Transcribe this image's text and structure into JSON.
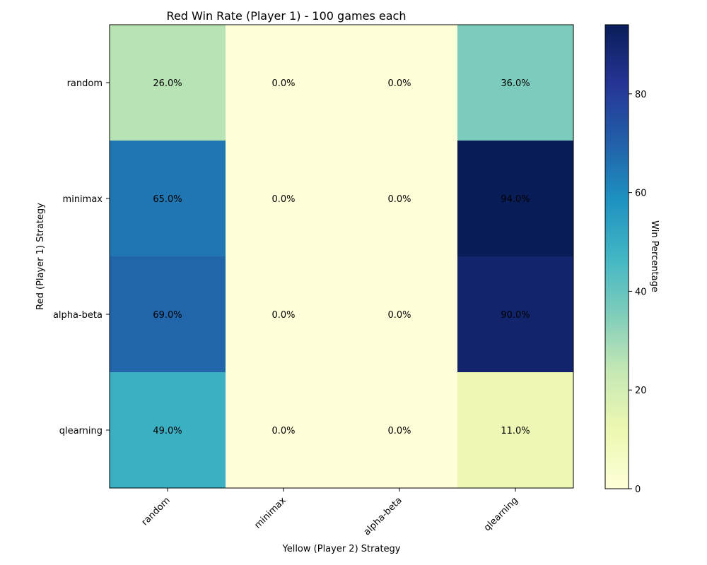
{
  "chart_data": {
    "type": "heatmap",
    "title": "Red Win Rate (Player 1) - 100 games each",
    "xlabel": "Yellow (Player 2) Strategy",
    "ylabel": "Red (Player 1) Strategy",
    "x_categories": [
      "random",
      "minimax",
      "alpha-beta",
      "qlearning"
    ],
    "y_categories": [
      "random",
      "minimax",
      "alpha-beta",
      "qlearning"
    ],
    "values": [
      [
        26.0,
        0.0,
        0.0,
        36.0
      ],
      [
        65.0,
        0.0,
        0.0,
        94.0
      ],
      [
        69.0,
        0.0,
        0.0,
        90.0
      ],
      [
        49.0,
        0.0,
        0.0,
        11.0
      ]
    ],
    "value_suffix": "%",
    "colorbar": {
      "label": "Win Percentage",
      "range": [
        0,
        94
      ],
      "ticks": [
        0,
        20,
        40,
        60,
        80
      ]
    },
    "colormap": "YlGnBu",
    "colors": [
      "#ffffd9",
      "#edf8b1",
      "#c7e9b4",
      "#7fcdbb",
      "#41b6c4",
      "#1d91c0",
      "#225ea8",
      "#253494",
      "#081d58"
    ]
  }
}
